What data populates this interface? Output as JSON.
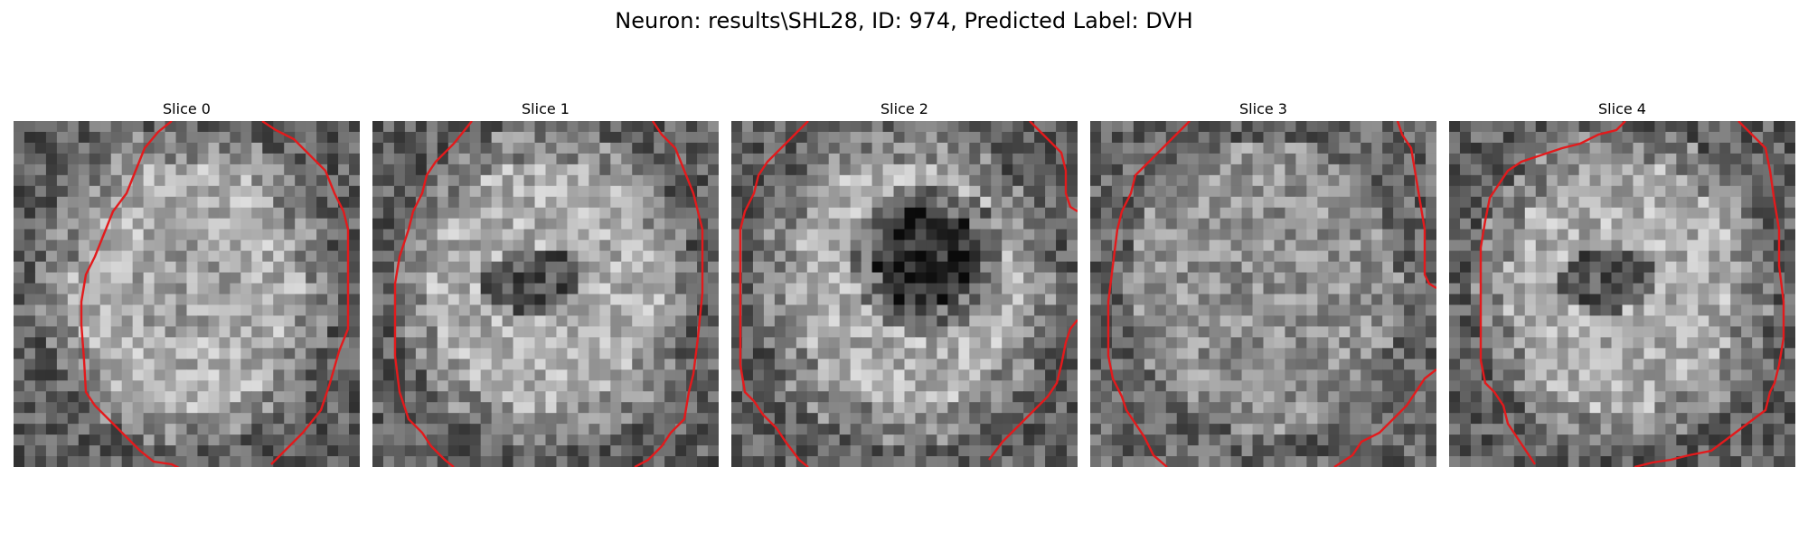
{
  "figure": {
    "title": "Neuron: results\\SHL28, ID: 974, Predicted Label: DVH"
  },
  "colors": {
    "contour": "#e31a1c",
    "colormap": "gray"
  },
  "panels": [
    {
      "label": "Slice 0",
      "pattern": "ring"
    },
    {
      "label": "Slice 1",
      "pattern": "ring-dark-center"
    },
    {
      "label": "Slice 2",
      "pattern": "dark-core"
    },
    {
      "label": "Slice 3",
      "pattern": "mottled"
    },
    {
      "label": "Slice 4",
      "pattern": "ring-dark-center"
    }
  ]
}
